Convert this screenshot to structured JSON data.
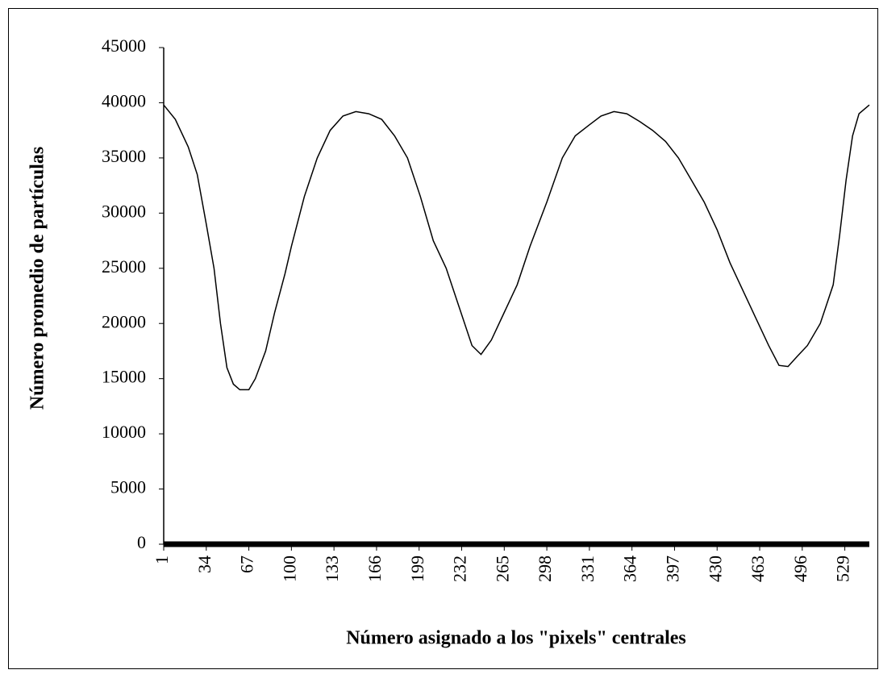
{
  "chart_data": {
    "type": "line",
    "xlabel": "Número asignado a los \"pixels\" centrales",
    "ylabel": "Número promedio de partículas",
    "color": "#000000",
    "x": [
      1,
      10,
      20,
      27,
      34,
      40,
      45,
      50,
      55,
      60,
      67,
      72,
      80,
      87,
      95,
      100,
      110,
      120,
      130,
      140,
      150,
      160,
      170,
      180,
      190,
      200,
      210,
      220,
      230,
      240,
      247,
      255,
      265,
      275,
      285,
      298,
      310,
      320,
      331,
      340,
      350,
      360,
      370,
      380,
      390,
      400,
      410,
      420,
      430,
      440,
      450,
      460,
      470,
      478,
      485,
      492,
      500,
      510,
      520,
      525,
      530,
      535,
      540,
      548
    ],
    "values": [
      39800,
      38500,
      36000,
      33500,
      29000,
      25000,
      20000,
      16000,
      14500,
      14000,
      14000,
      15000,
      17500,
      21000,
      24500,
      27000,
      31500,
      35000,
      37500,
      38800,
      39200,
      39000,
      38500,
      37000,
      35000,
      31500,
      27500,
      25000,
      21500,
      18000,
      17200,
      18500,
      21000,
      23500,
      27000,
      31000,
      35000,
      37000,
      38000,
      38800,
      39200,
      39000,
      38300,
      37500,
      36500,
      35000,
      33000,
      31000,
      28500,
      25500,
      23000,
      20500,
      18000,
      16200,
      16100,
      17000,
      18000,
      20000,
      23500,
      28000,
      33000,
      37000,
      39000,
      39800
    ],
    "xlim": [
      1,
      548
    ],
    "xticks": [
      1,
      34,
      67,
      100,
      133,
      166,
      199,
      232,
      265,
      298,
      331,
      364,
      397,
      430,
      463,
      496,
      529
    ],
    "ylim": [
      0,
      45000
    ],
    "yticks": [
      0,
      5000,
      10000,
      15000,
      20000,
      25000,
      30000,
      35000,
      40000,
      45000
    ],
    "grid": false
  }
}
